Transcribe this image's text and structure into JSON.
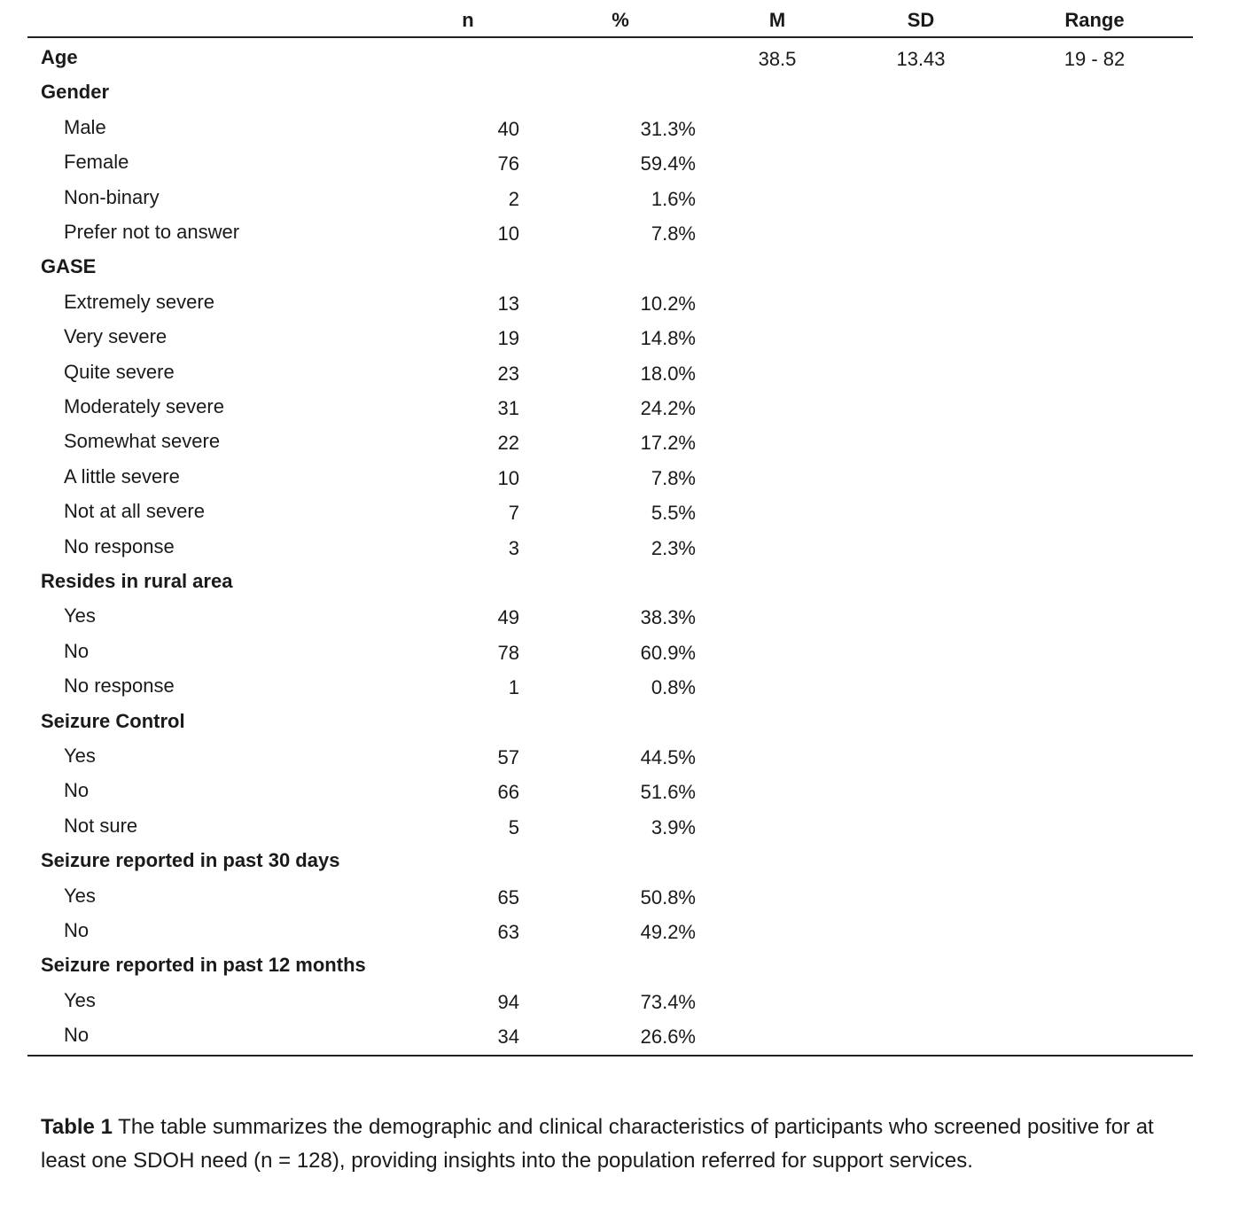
{
  "header": {
    "columns": [
      "n",
      "%",
      "M",
      "SD",
      "Range"
    ]
  },
  "sections": [
    {
      "label": "Age",
      "m": "38.5",
      "sd": "13.43",
      "range": "19 - 82"
    },
    {
      "label": "Gender",
      "items": [
        {
          "label": "Male",
          "n": 40,
          "pct": "31.3%"
        },
        {
          "label": "Female",
          "n": 76,
          "pct": "59.4%"
        },
        {
          "label": "Non-binary",
          "n": 2,
          "pct": "1.6%"
        },
        {
          "label": "Prefer not to answer",
          "n": 10,
          "pct": "7.8%"
        }
      ]
    },
    {
      "label": "GASE",
      "items": [
        {
          "label": "Extremely severe",
          "n": 13,
          "pct": "10.2%"
        },
        {
          "label": "Very severe",
          "n": 19,
          "pct": "14.8%"
        },
        {
          "label": "Quite severe",
          "n": 23,
          "pct": "18.0%"
        },
        {
          "label": "Moderately severe",
          "n": 31,
          "pct": "24.2%"
        },
        {
          "label": "Somewhat severe",
          "n": 22,
          "pct": "17.2%"
        },
        {
          "label": "A little severe",
          "n": 10,
          "pct": "7.8%"
        },
        {
          "label": "Not at all severe",
          "n": 7,
          "pct": "5.5%"
        },
        {
          "label": "No response",
          "n": 3,
          "pct": "2.3%"
        }
      ]
    },
    {
      "label": "Resides in rural area",
      "items": [
        {
          "label": "Yes",
          "n": 49,
          "pct": "38.3%"
        },
        {
          "label": "No",
          "n": 78,
          "pct": "60.9%"
        },
        {
          "label": "No response",
          "n": 1,
          "pct": "0.8%"
        }
      ]
    },
    {
      "label": "Seizure Control",
      "items": [
        {
          "label": "Yes",
          "n": 57,
          "pct": "44.5%"
        },
        {
          "label": "No",
          "n": 66,
          "pct": "51.6%"
        },
        {
          "label": "Not sure",
          "n": 5,
          "pct": "3.9%"
        }
      ]
    },
    {
      "label": "Seizure reported in past 30 days",
      "items": [
        {
          "label": "Yes",
          "n": 65,
          "pct": "50.8%"
        },
        {
          "label": "No",
          "n": 63,
          "pct": "49.2%"
        }
      ]
    },
    {
      "label": "Seizure reported in past 12 months",
      "items": [
        {
          "label": "Yes",
          "n": 94,
          "pct": "73.4%"
        },
        {
          "label": "No",
          "n": 34,
          "pct": "26.6%"
        }
      ]
    }
  ],
  "caption": {
    "label": "Table 1",
    "text": "The table summarizes the demographic and clinical characteristics of participants who screened positive for at least one SDOH need (n = 128), providing insights into the population referred for support services."
  }
}
